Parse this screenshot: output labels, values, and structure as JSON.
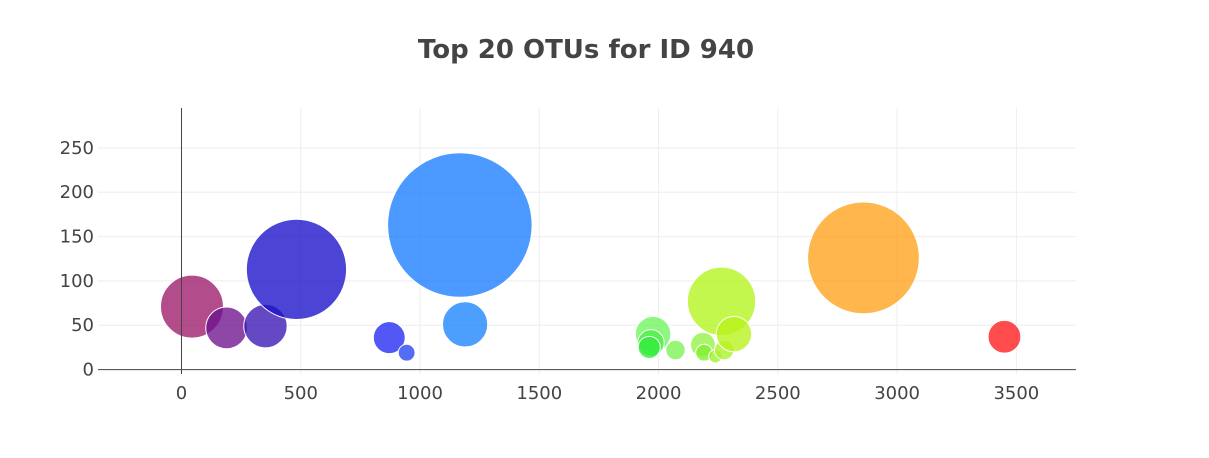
{
  "chart_data": {
    "type": "scatter",
    "title": "Top 20 OTUs for ID 940",
    "xlabel": "",
    "ylabel": "",
    "xlim": [
      -350,
      3750
    ],
    "ylim": [
      -5,
      295
    ],
    "x_ticks": [
      0,
      500,
      1000,
      1500,
      2000,
      2500,
      3000,
      3500
    ],
    "y_ticks": [
      0,
      50,
      100,
      150,
      200,
      250
    ],
    "grid": true,
    "series": [
      {
        "points": [
          {
            "x": 44,
            "y": 71,
            "size": 71,
            "color": "#9e1a6a"
          },
          {
            "x": 189,
            "y": 47,
            "size": 47,
            "color": "#6e128e"
          },
          {
            "x": 352,
            "y": 49,
            "size": 49,
            "color": "#3a16b4"
          },
          {
            "x": 482,
            "y": 113,
            "size": 113,
            "color": "#1a10c8"
          },
          {
            "x": 871,
            "y": 36,
            "size": 36,
            "color": "#2128f2"
          },
          {
            "x": 944,
            "y": 19,
            "size": 19,
            "color": "#2244f2"
          },
          {
            "x": 1167,
            "y": 163,
            "size": 163,
            "color": "#1a7cff"
          },
          {
            "x": 1189,
            "y": 51,
            "size": 51,
            "color": "#1a84fb"
          },
          {
            "x": 1977,
            "y": 40,
            "size": 40,
            "color": "#6ef55c"
          },
          {
            "x": 1968,
            "y": 30,
            "size": 30,
            "color": "#4cef48"
          },
          {
            "x": 1961,
            "y": 25,
            "size": 25,
            "color": "#32ea3c"
          },
          {
            "x": 2071,
            "y": 22,
            "size": 22,
            "color": "#7cf252"
          },
          {
            "x": 2186,
            "y": 28,
            "size": 28,
            "color": "#92f242"
          },
          {
            "x": 2191,
            "y": 19,
            "size": 19,
            "color": "#80f030"
          },
          {
            "x": 2238,
            "y": 15,
            "size": 15,
            "color": "#9cf22c"
          },
          {
            "x": 2264,
            "y": 77,
            "size": 77,
            "color": "#b4f51c"
          },
          {
            "x": 2275,
            "y": 22,
            "size": 22,
            "color": "#aaf226"
          },
          {
            "x": 2316,
            "y": 40,
            "size": 40,
            "color": "#b8f21a"
          },
          {
            "x": 2859,
            "y": 126,
            "size": 126,
            "color": "#ffa21a"
          },
          {
            "x": 3450,
            "y": 37,
            "size": 37,
            "color": "#ff1a1a"
          }
        ]
      }
    ]
  }
}
